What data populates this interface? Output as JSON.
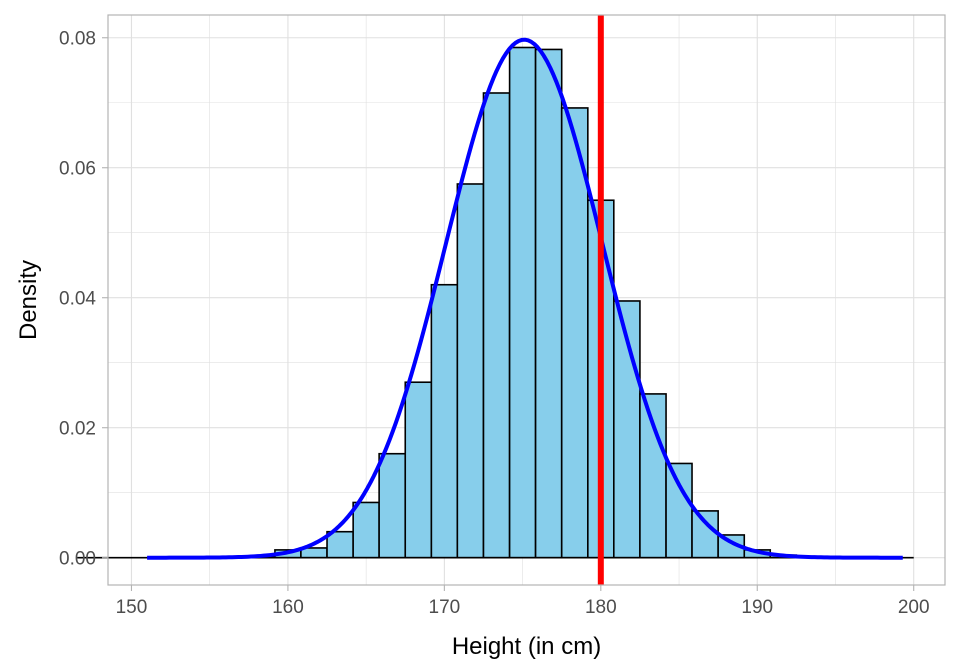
{
  "chart_data": {
    "type": "bar",
    "title": "",
    "xlabel": "Height (in cm)",
    "ylabel": "Density",
    "xlim": [
      148.5,
      202
    ],
    "ylim": [
      -0.0042,
      0.0835
    ],
    "x_ticks": [
      150,
      160,
      170,
      180,
      190,
      200
    ],
    "x_tick_labels": [
      "150",
      "160",
      "170",
      "180",
      "190",
      "200"
    ],
    "y_ticks": [
      0,
      0.02,
      0.04,
      0.06,
      0.08
    ],
    "y_tick_labels": [
      "0.00",
      "0.02",
      "0.04",
      "0.06",
      "0.08"
    ],
    "grid": true,
    "bin_width": 1.667,
    "histogram_bins": [
      {
        "x0": 150.83,
        "x1": 152.5,
        "density": 0.0
      },
      {
        "x0": 152.5,
        "x1": 154.17,
        "density": 0.0
      },
      {
        "x0": 154.17,
        "x1": 155.83,
        "density": 0.0
      },
      {
        "x0": 155.83,
        "x1": 157.5,
        "density": 0.0
      },
      {
        "x0": 157.5,
        "x1": 159.17,
        "density": 0.0002
      },
      {
        "x0": 159.17,
        "x1": 160.83,
        "density": 0.0012
      },
      {
        "x0": 160.83,
        "x1": 162.5,
        "density": 0.0015
      },
      {
        "x0": 162.5,
        "x1": 164.17,
        "density": 0.004
      },
      {
        "x0": 164.17,
        "x1": 165.83,
        "density": 0.0085
      },
      {
        "x0": 165.83,
        "x1": 167.5,
        "density": 0.016
      },
      {
        "x0": 167.5,
        "x1": 169.17,
        "density": 0.027
      },
      {
        "x0": 169.17,
        "x1": 170.83,
        "density": 0.042
      },
      {
        "x0": 170.83,
        "x1": 172.5,
        "density": 0.0575
      },
      {
        "x0": 172.5,
        "x1": 174.17,
        "density": 0.0715
      },
      {
        "x0": 174.17,
        "x1": 175.83,
        "density": 0.0785
      },
      {
        "x0": 175.83,
        "x1": 177.5,
        "density": 0.0782
      },
      {
        "x0": 177.5,
        "x1": 179.17,
        "density": 0.0692
      },
      {
        "x0": 179.17,
        "x1": 180.83,
        "density": 0.055
      },
      {
        "x0": 180.83,
        "x1": 182.5,
        "density": 0.0395
      },
      {
        "x0": 182.5,
        "x1": 184.17,
        "density": 0.0252
      },
      {
        "x0": 184.17,
        "x1": 185.83,
        "density": 0.0145
      },
      {
        "x0": 185.83,
        "x1": 187.5,
        "density": 0.0072
      },
      {
        "x0": 187.5,
        "x1": 189.17,
        "density": 0.0035
      },
      {
        "x0": 189.17,
        "x1": 190.83,
        "density": 0.0012
      },
      {
        "x0": 190.83,
        "x1": 192.5,
        "density": 0.0004
      },
      {
        "x0": 192.5,
        "x1": 194.17,
        "density": 0.0001
      },
      {
        "x0": 194.17,
        "x1": 195.83,
        "density": 0.0
      },
      {
        "x0": 195.83,
        "x1": 197.5,
        "density": 0.0
      },
      {
        "x0": 197.5,
        "x1": 199.17,
        "density": 0.0
      },
      {
        "x0": 199.17,
        "x1": 200.0,
        "density": 0.0
      }
    ],
    "density_curve": {
      "x_range": [
        151.0,
        199.3
      ],
      "mean": 175.1,
      "sd": 5.0,
      "peak_density": 0.0797
    },
    "vertical_line": {
      "x": 180
    },
    "colors": {
      "bar_fill": "#87ceeb",
      "bar_outline": "#000000",
      "density_line": "#0000ff",
      "vertical_line": "#ff0000",
      "grid": "#e0e0e0",
      "panel_border": "#b3b3b3"
    }
  }
}
